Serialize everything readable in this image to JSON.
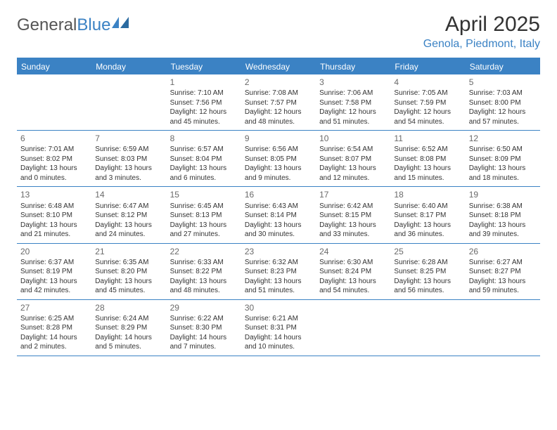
{
  "brand": {
    "name1": "General",
    "name2": "Blue"
  },
  "header": {
    "month_title": "April 2025",
    "location": "Genola, Piedmont, Italy"
  },
  "colors": {
    "accent": "#3b82c4",
    "text": "#333333",
    "daynum": "#6a6a6a",
    "background": "#ffffff"
  },
  "calendar": {
    "weekdays": [
      "Sunday",
      "Monday",
      "Tuesday",
      "Wednesday",
      "Thursday",
      "Friday",
      "Saturday"
    ],
    "weeks": [
      [
        null,
        null,
        {
          "n": "1",
          "sr": "7:10 AM",
          "ss": "7:56 PM",
          "dl": "12 hours and 45 minutes."
        },
        {
          "n": "2",
          "sr": "7:08 AM",
          "ss": "7:57 PM",
          "dl": "12 hours and 48 minutes."
        },
        {
          "n": "3",
          "sr": "7:06 AM",
          "ss": "7:58 PM",
          "dl": "12 hours and 51 minutes."
        },
        {
          "n": "4",
          "sr": "7:05 AM",
          "ss": "7:59 PM",
          "dl": "12 hours and 54 minutes."
        },
        {
          "n": "5",
          "sr": "7:03 AM",
          "ss": "8:00 PM",
          "dl": "12 hours and 57 minutes."
        }
      ],
      [
        {
          "n": "6",
          "sr": "7:01 AM",
          "ss": "8:02 PM",
          "dl": "13 hours and 0 minutes."
        },
        {
          "n": "7",
          "sr": "6:59 AM",
          "ss": "8:03 PM",
          "dl": "13 hours and 3 minutes."
        },
        {
          "n": "8",
          "sr": "6:57 AM",
          "ss": "8:04 PM",
          "dl": "13 hours and 6 minutes."
        },
        {
          "n": "9",
          "sr": "6:56 AM",
          "ss": "8:05 PM",
          "dl": "13 hours and 9 minutes."
        },
        {
          "n": "10",
          "sr": "6:54 AM",
          "ss": "8:07 PM",
          "dl": "13 hours and 12 minutes."
        },
        {
          "n": "11",
          "sr": "6:52 AM",
          "ss": "8:08 PM",
          "dl": "13 hours and 15 minutes."
        },
        {
          "n": "12",
          "sr": "6:50 AM",
          "ss": "8:09 PM",
          "dl": "13 hours and 18 minutes."
        }
      ],
      [
        {
          "n": "13",
          "sr": "6:48 AM",
          "ss": "8:10 PM",
          "dl": "13 hours and 21 minutes."
        },
        {
          "n": "14",
          "sr": "6:47 AM",
          "ss": "8:12 PM",
          "dl": "13 hours and 24 minutes."
        },
        {
          "n": "15",
          "sr": "6:45 AM",
          "ss": "8:13 PM",
          "dl": "13 hours and 27 minutes."
        },
        {
          "n": "16",
          "sr": "6:43 AM",
          "ss": "8:14 PM",
          "dl": "13 hours and 30 minutes."
        },
        {
          "n": "17",
          "sr": "6:42 AM",
          "ss": "8:15 PM",
          "dl": "13 hours and 33 minutes."
        },
        {
          "n": "18",
          "sr": "6:40 AM",
          "ss": "8:17 PM",
          "dl": "13 hours and 36 minutes."
        },
        {
          "n": "19",
          "sr": "6:38 AM",
          "ss": "8:18 PM",
          "dl": "13 hours and 39 minutes."
        }
      ],
      [
        {
          "n": "20",
          "sr": "6:37 AM",
          "ss": "8:19 PM",
          "dl": "13 hours and 42 minutes."
        },
        {
          "n": "21",
          "sr": "6:35 AM",
          "ss": "8:20 PM",
          "dl": "13 hours and 45 minutes."
        },
        {
          "n": "22",
          "sr": "6:33 AM",
          "ss": "8:22 PM",
          "dl": "13 hours and 48 minutes."
        },
        {
          "n": "23",
          "sr": "6:32 AM",
          "ss": "8:23 PM",
          "dl": "13 hours and 51 minutes."
        },
        {
          "n": "24",
          "sr": "6:30 AM",
          "ss": "8:24 PM",
          "dl": "13 hours and 54 minutes."
        },
        {
          "n": "25",
          "sr": "6:28 AM",
          "ss": "8:25 PM",
          "dl": "13 hours and 56 minutes."
        },
        {
          "n": "26",
          "sr": "6:27 AM",
          "ss": "8:27 PM",
          "dl": "13 hours and 59 minutes."
        }
      ],
      [
        {
          "n": "27",
          "sr": "6:25 AM",
          "ss": "8:28 PM",
          "dl": "14 hours and 2 minutes."
        },
        {
          "n": "28",
          "sr": "6:24 AM",
          "ss": "8:29 PM",
          "dl": "14 hours and 5 minutes."
        },
        {
          "n": "29",
          "sr": "6:22 AM",
          "ss": "8:30 PM",
          "dl": "14 hours and 7 minutes."
        },
        {
          "n": "30",
          "sr": "6:21 AM",
          "ss": "8:31 PM",
          "dl": "14 hours and 10 minutes."
        },
        null,
        null,
        null
      ]
    ]
  },
  "labels": {
    "sunrise_prefix": "Sunrise: ",
    "sunset_prefix": "Sunset: ",
    "daylight_prefix": "Daylight: "
  }
}
